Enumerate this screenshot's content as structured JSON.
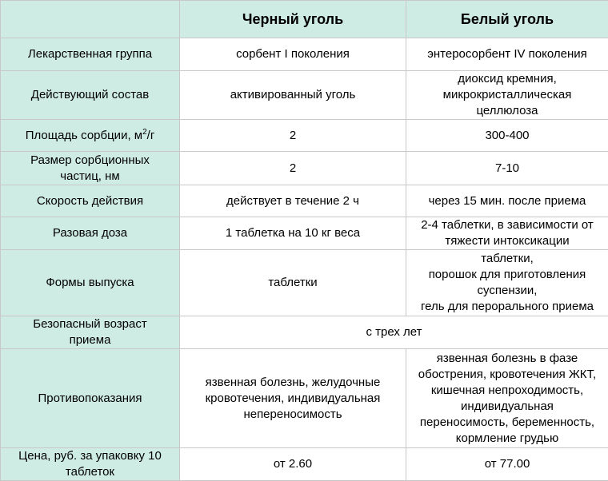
{
  "header": {
    "corner": "",
    "col_black": "Черный уголь",
    "col_white": "Белый уголь"
  },
  "rows": [
    {
      "label": [
        "Лекарственная группа"
      ],
      "black": [
        "сорбент I поколения"
      ],
      "white": [
        "энтеросорбент IV поколения"
      ]
    },
    {
      "label": [
        "Действующий  состав"
      ],
      "black": [
        "активированный  уголь"
      ],
      "white": [
        "диоксид  кремния,",
        "микрокристаллическая",
        "целлюлоза"
      ]
    },
    {
      "label_prefix": "Площадь  сорбции,  м",
      "label_sup": "2",
      "label_suffix": "/г",
      "black": [
        "2"
      ],
      "white": [
        "300-400"
      ]
    },
    {
      "label": [
        "Размер сорбционных",
        "частиц,  нм"
      ],
      "black": [
        "2"
      ],
      "white": [
        "7-10"
      ]
    },
    {
      "label": [
        "Скорость действия"
      ],
      "black": [
        "действует  в течение  2  ч"
      ],
      "white": [
        "через 15 мин.  после  приема"
      ]
    },
    {
      "label": [
        "Разовая доза"
      ],
      "black": [
        "1 таблетка  на  10 кг веса"
      ],
      "white": [
        "2-4 таблетки,  в зависимости  от",
        "тяжести интоксикации"
      ]
    },
    {
      "label": [
        "Формы выпуска"
      ],
      "black": [
        "таблетки"
      ],
      "white": [
        "таблетки,",
        "порошок для приготовления",
        "суспензии,",
        "гель для перорального приема"
      ]
    },
    {
      "label": [
        "Безопасный возраст",
        "приема"
      ],
      "merged": [
        "с трех лет"
      ]
    },
    {
      "label": [
        "Противопоказания"
      ],
      "black": [
        "язвенная болезнь, желудочные",
        "кровотечения,  индивидуальная",
        "непереносимость"
      ],
      "white": [
        "язвенная болезнь в фазе",
        "обострения, кровотечения ЖКТ,",
        "кишечная  непроходимость,",
        "индивидуальная",
        "переносимость, беременность,",
        "кормление  грудью"
      ]
    },
    {
      "label": [
        "Цена, руб. за упаковку  10",
        "таблеток"
      ],
      "black": [
        "от 2.60"
      ],
      "white": [
        "от 77.00"
      ]
    }
  ],
  "colors": {
    "header_bg": "#cfece4",
    "label_bg": "#cfece4",
    "value_bg": "#ffffff",
    "border": "#c8c8c8"
  }
}
